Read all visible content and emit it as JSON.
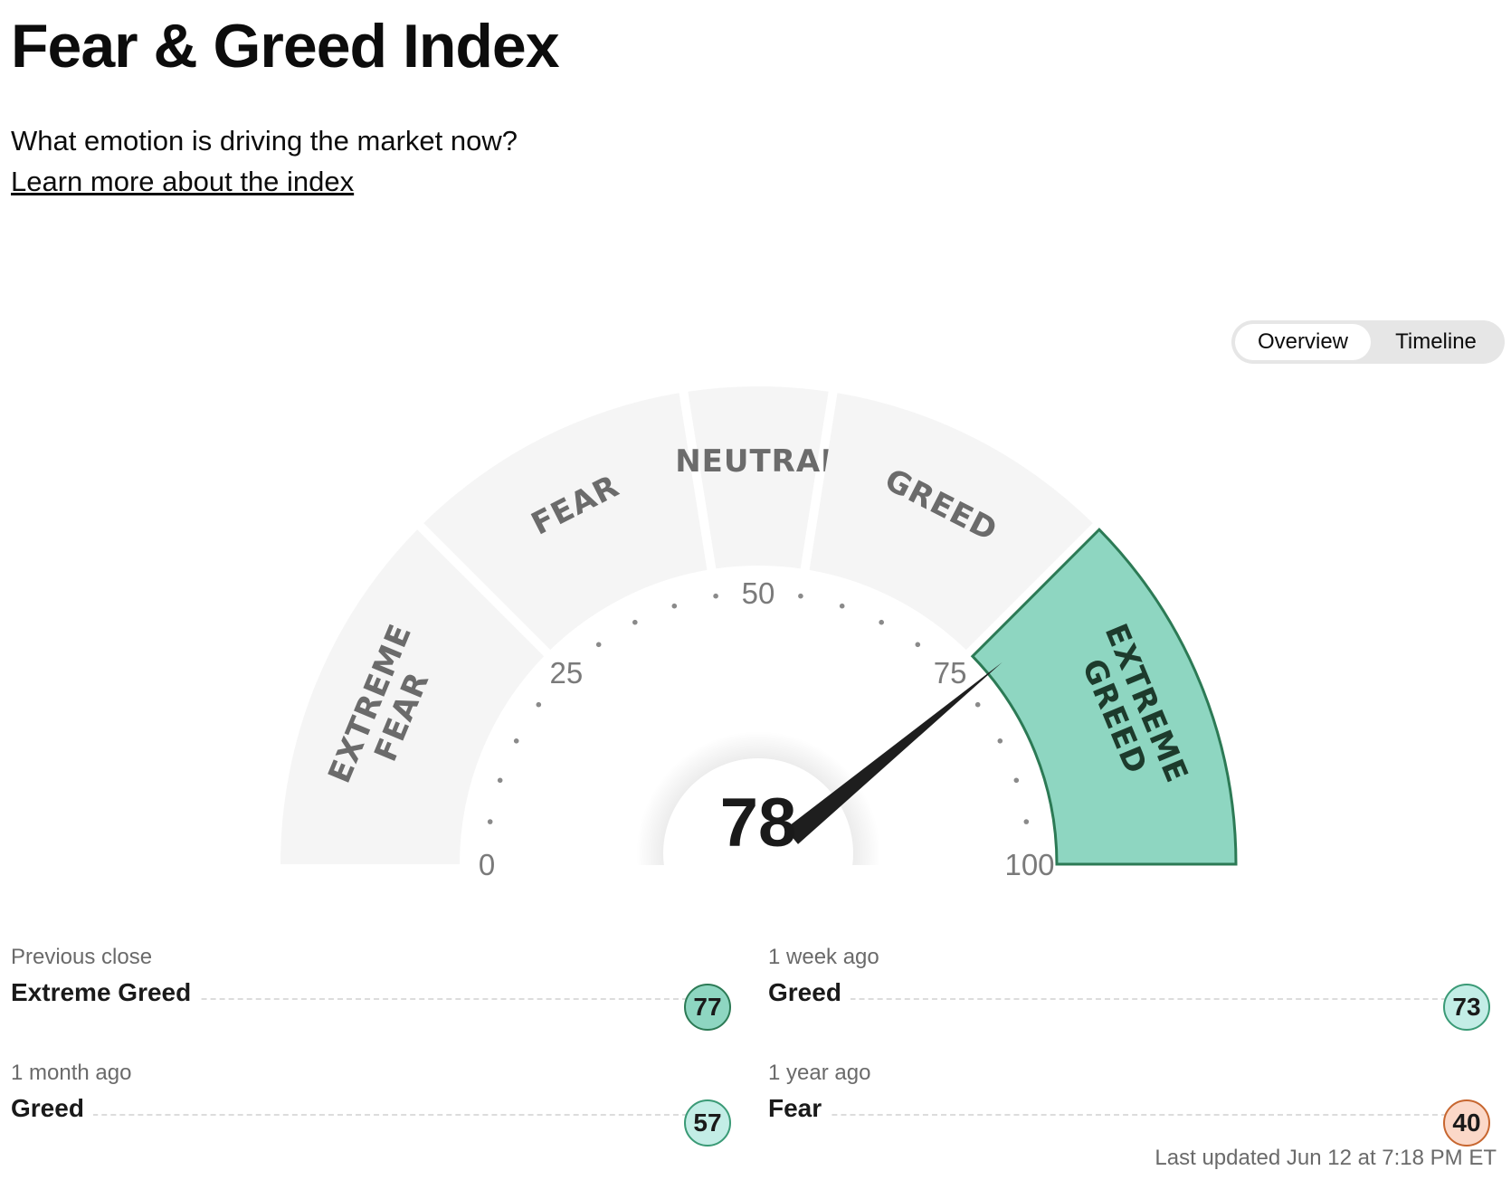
{
  "header": {
    "title": "Fear & Greed Index",
    "subtitle": "What emotion is driving the market now?",
    "learn_more": "Learn more about the index"
  },
  "view_toggle": {
    "active": "Overview",
    "options": [
      "Overview",
      "Timeline"
    ]
  },
  "gauge": {
    "score": "78",
    "score_value": 78,
    "current_segment": "EXTREME GREED",
    "segments": [
      {
        "lines": [
          "EXTREME",
          "FEAR"
        ],
        "from": 0,
        "to": 25
      },
      {
        "lines": [
          "FEAR"
        ],
        "from": 25,
        "to": 45
      },
      {
        "lines": [
          "NEUTRAL"
        ],
        "from": 45,
        "to": 55
      },
      {
        "lines": [
          "GREED"
        ],
        "from": 55,
        "to": 75
      },
      {
        "lines": [
          "EXTREME",
          "GREED"
        ],
        "from": 75,
        "to": 100
      }
    ],
    "tick_labels": [
      "0",
      "25",
      "50",
      "75",
      "100"
    ],
    "colors": {
      "inactive_segment": "#f5f5f5",
      "active_segment": "#8ed6c1",
      "active_border": "#2c7a55",
      "needle": "#1e1e1e"
    }
  },
  "history": [
    {
      "label": "Previous close",
      "rating": "Extreme Greed",
      "value": "77",
      "badge_color": "#8ed6c1",
      "border_color": "#2c7a55"
    },
    {
      "label": "1 week ago",
      "rating": "Greed",
      "value": "73",
      "badge_color": "#c3ede6",
      "border_color": "#3a9a76"
    },
    {
      "label": "1 month ago",
      "rating": "Greed",
      "value": "57",
      "badge_color": "#c3ede6",
      "border_color": "#3a9a76"
    },
    {
      "label": "1 year ago",
      "rating": "Fear",
      "value": "40",
      "badge_color": "#fbd8c8",
      "border_color": "#c7662f"
    }
  ],
  "last_updated": "Last updated Jun 12 at 7:18 PM ET"
}
